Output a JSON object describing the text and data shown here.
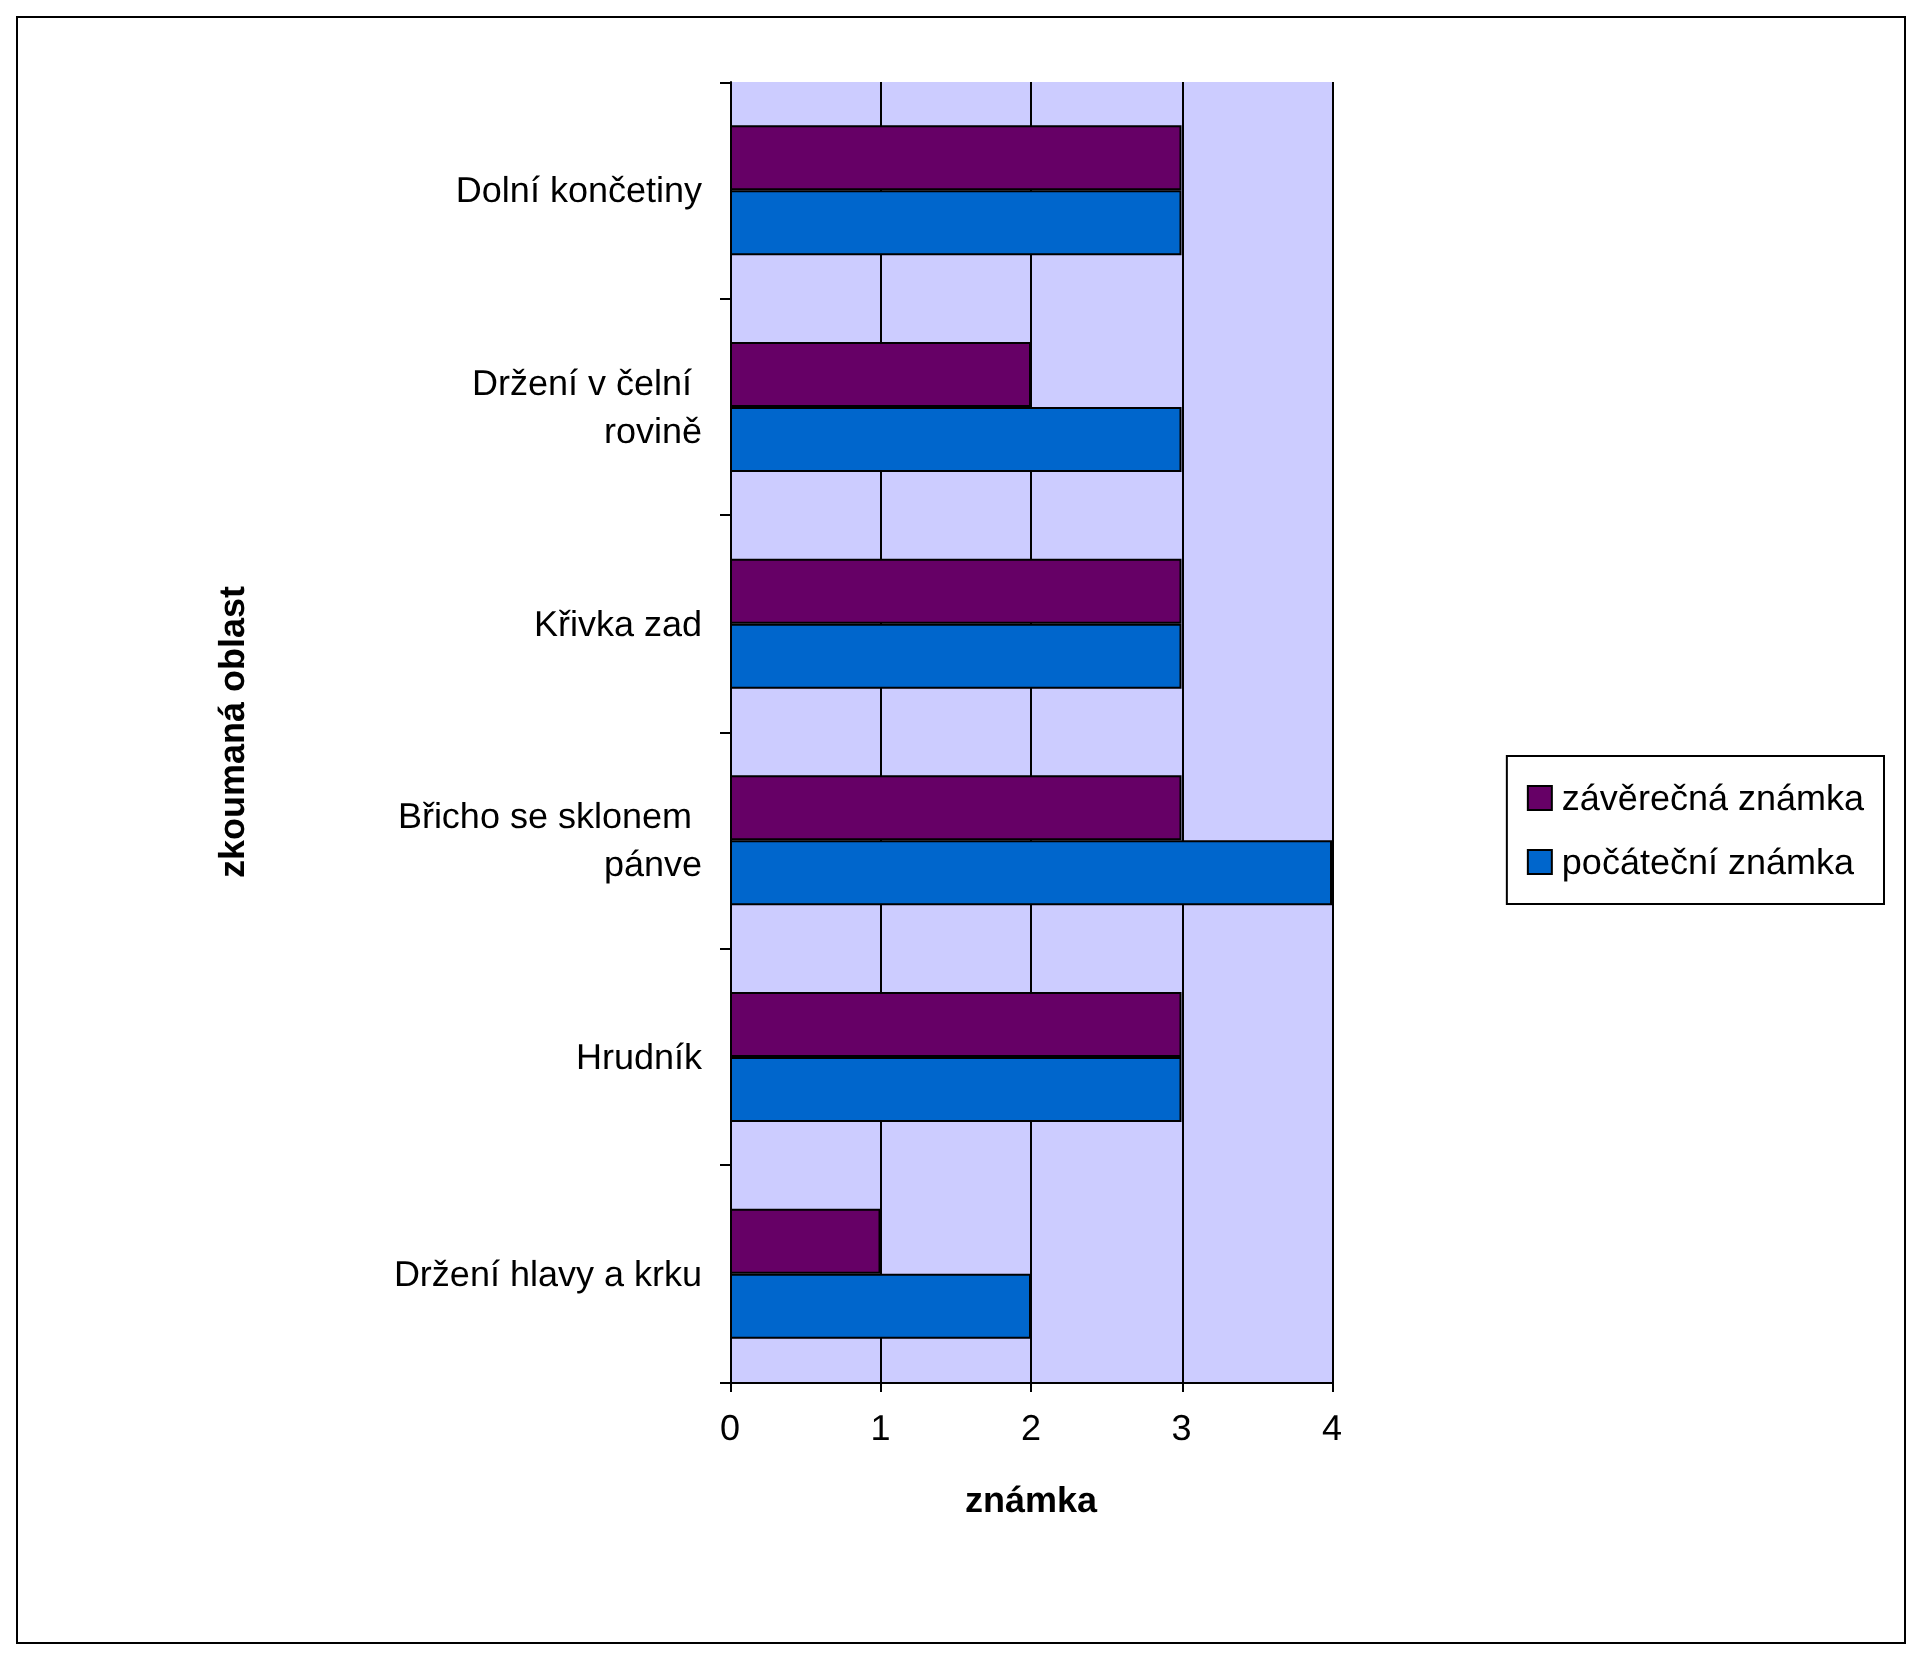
{
  "chart_data": {
    "type": "bar",
    "orientation": "horizontal",
    "xlabel": "známka",
    "ylabel": "zkoumaná oblast",
    "categories": [
      "Dolní končetiny",
      "Držení v čelní rovině",
      "Křivka zad",
      "Břicho se sklonem pánve",
      "Hrudník",
      "Držení hlavy a krku"
    ],
    "series": [
      {
        "name": "závěrečná známka",
        "color": "#660066",
        "values": [
          3,
          2,
          3,
          3,
          3,
          1
        ]
      },
      {
        "name": "počáteční známka",
        "color": "#0066cc",
        "values": [
          3,
          3,
          3,
          4,
          3,
          2
        ]
      }
    ],
    "xlim": [
      0,
      4
    ],
    "xticks": [
      0,
      1,
      2,
      3,
      4
    ],
    "grid": "x",
    "legend": "right"
  }
}
